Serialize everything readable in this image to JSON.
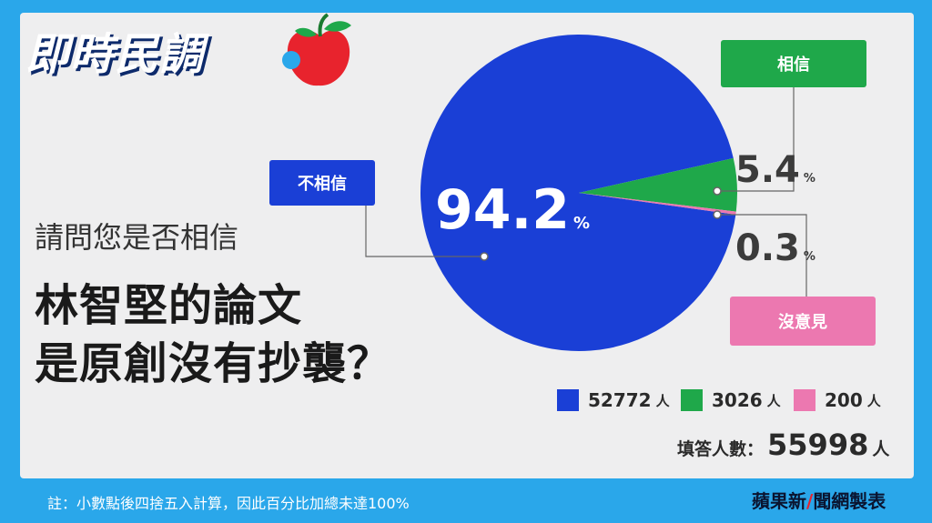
{
  "brand": {
    "title": "即時民調",
    "credit_a": "蘋果新",
    "credit_b": "聞網製表"
  },
  "question": {
    "line_small": "請問您是否相信",
    "line1": "林智堅的論文",
    "line2": "是原創沒有抄襲？"
  },
  "labels": {
    "no": "不相信",
    "yes": "相信",
    "no_opinion": "沒意見",
    "percent_unit": "%",
    "person_unit": "人",
    "total_label": "填答人數：",
    "total_value": "55998",
    "total_unit": "人"
  },
  "chart_data": {
    "type": "pie",
    "slices": [
      {
        "label": "不相信",
        "value": 94.2,
        "count": 52772,
        "color": "#1a3fd6"
      },
      {
        "label": "相信",
        "value": 5.4,
        "count": 3026,
        "color": "#1fa84a"
      },
      {
        "label": "沒意見",
        "value": 0.3,
        "count": 200,
        "color": "#ec78b0"
      }
    ],
    "total": 55998
  },
  "display": {
    "pct_no": "94.2",
    "pct_yes": "5.4",
    "pct_none": "0.3",
    "count_no": "52772",
    "count_yes": "3026",
    "count_none": "200"
  },
  "footnote": "註：小數點後四捨五入計算，因此百分比加總未達100%"
}
